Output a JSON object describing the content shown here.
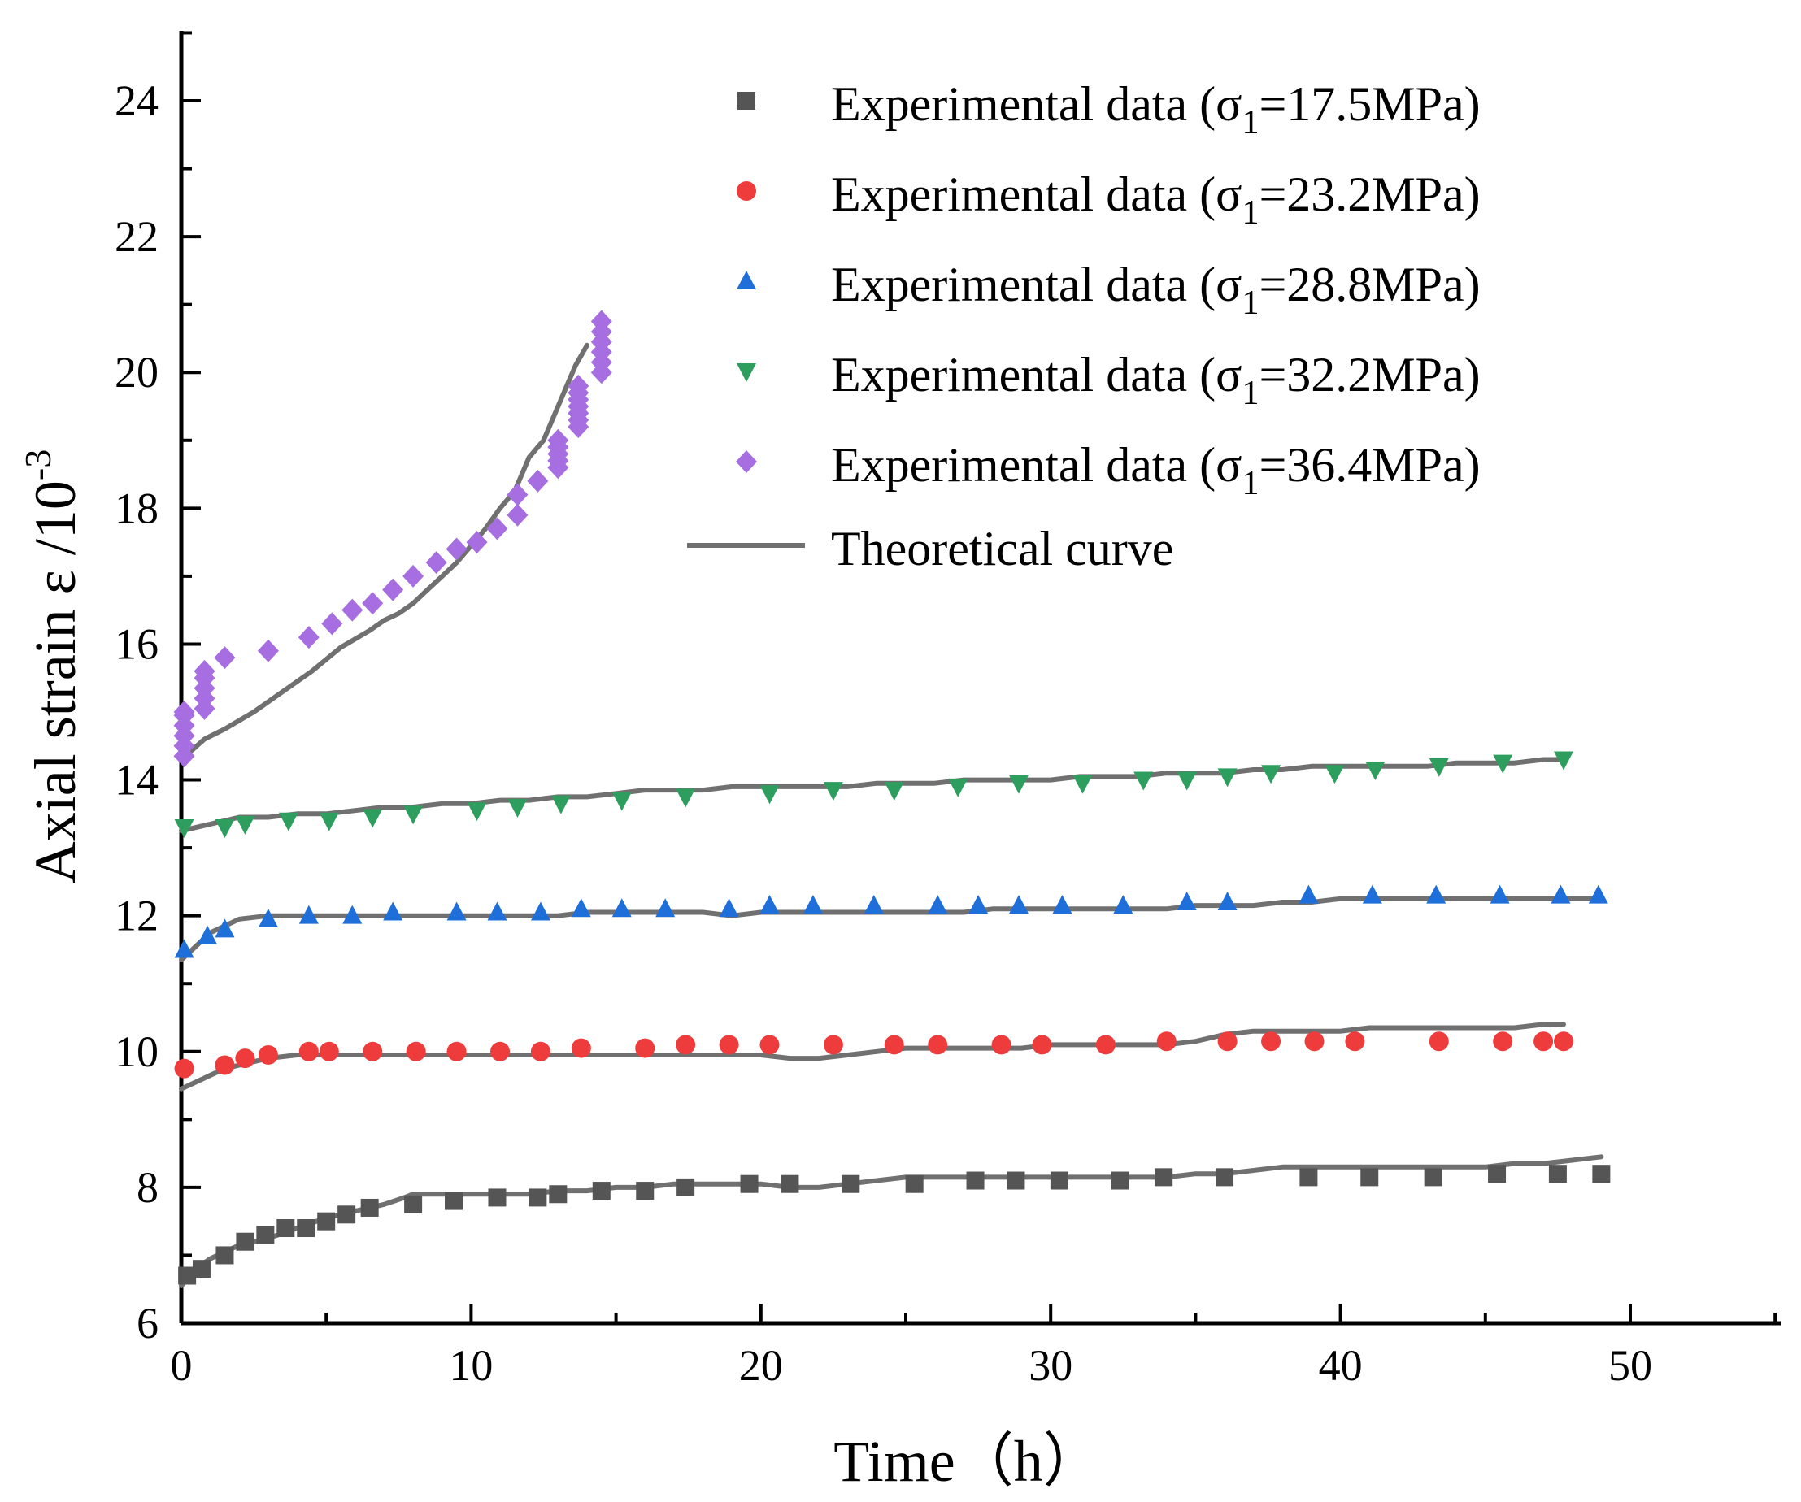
{
  "chart_data": {
    "type": "scatter",
    "xlabel": "Time（h）",
    "ylabel": "Axial strain  ε /10",
    "ylabel_sup": "-3",
    "xlim": [
      0,
      55
    ],
    "ylim": [
      6,
      25
    ],
    "xticks": [
      0,
      10,
      20,
      30,
      40,
      50
    ],
    "yticks": [
      6,
      8,
      10,
      12,
      14,
      16,
      18,
      20,
      22,
      24
    ],
    "grid": false,
    "legend_position": "top-right",
    "series": [
      {
        "name": "Experimental data (σ1=17.5MPa)",
        "legend": {
          "pre": "Experimental data (σ",
          "sub": "1",
          "post": "=17.5MPa)"
        },
        "marker": "square",
        "color": "#555555",
        "x": [
          0.2,
          0.7,
          1.5,
          2.2,
          2.9,
          3.6,
          4.3,
          5.0,
          5.7,
          6.5,
          8.0,
          9.4,
          10.9,
          12.3,
          13.0,
          14.5,
          16.0,
          17.4,
          19.6,
          21.0,
          23.1,
          25.3,
          27.4,
          28.8,
          30.3,
          32.4,
          33.9,
          36.0,
          38.9,
          41.0,
          43.2,
          45.4,
          47.5,
          49.0
        ],
        "y": [
          6.7,
          6.8,
          7.0,
          7.2,
          7.3,
          7.4,
          7.4,
          7.5,
          7.6,
          7.7,
          7.75,
          7.8,
          7.85,
          7.85,
          7.9,
          7.95,
          7.95,
          8.0,
          8.05,
          8.05,
          8.05,
          8.05,
          8.1,
          8.1,
          8.1,
          8.1,
          8.15,
          8.15,
          8.15,
          8.15,
          8.15,
          8.2,
          8.2,
          8.2
        ]
      },
      {
        "name": "Experimental data (σ1=23.2MPa)",
        "legend": {
          "pre": "Experimental data (σ",
          "sub": "1",
          "post": "=23.2MPa)"
        },
        "marker": "circle",
        "color": "#ee3b3b",
        "x": [
          0.1,
          1.5,
          2.2,
          3.0,
          4.4,
          5.1,
          6.6,
          8.1,
          9.5,
          11.0,
          12.4,
          13.8,
          16.0,
          17.4,
          18.9,
          20.3,
          22.5,
          24.6,
          26.1,
          28.3,
          29.7,
          31.9,
          34.0,
          36.1,
          37.6,
          39.1,
          40.5,
          43.4,
          45.6,
          47.0,
          47.7
        ],
        "y": [
          9.75,
          9.8,
          9.9,
          9.95,
          10.0,
          10.0,
          10.0,
          10.0,
          10.0,
          10.0,
          10.0,
          10.05,
          10.05,
          10.1,
          10.1,
          10.1,
          10.1,
          10.1,
          10.1,
          10.1,
          10.1,
          10.1,
          10.15,
          10.15,
          10.15,
          10.15,
          10.15,
          10.15,
          10.15,
          10.15,
          10.15
        ]
      },
      {
        "name": "Experimental data (σ1=28.8MPa)",
        "legend": {
          "pre": "Experimental data (σ",
          "sub": "1",
          "post": "=28.8MPa)"
        },
        "marker": "triangle-up",
        "color": "#1f6fdb",
        "x": [
          0.1,
          0.9,
          1.5,
          3.0,
          4.4,
          5.9,
          7.3,
          9.5,
          10.9,
          12.4,
          13.8,
          15.2,
          16.7,
          18.9,
          20.3,
          21.8,
          23.9,
          26.1,
          27.5,
          28.9,
          30.4,
          32.5,
          34.7,
          36.1,
          38.9,
          41.1,
          43.3,
          45.5,
          47.6,
          48.9
        ],
        "y": [
          11.5,
          11.7,
          11.8,
          11.95,
          12.0,
          12.0,
          12.05,
          12.05,
          12.05,
          12.05,
          12.1,
          12.1,
          12.1,
          12.1,
          12.15,
          12.15,
          12.15,
          12.15,
          12.15,
          12.15,
          12.15,
          12.15,
          12.2,
          12.2,
          12.3,
          12.3,
          12.3,
          12.3,
          12.3,
          12.3
        ]
      },
      {
        "name": "Experimental data (σ1=32.2MPa)",
        "legend": {
          "pre": "Experimental data (σ",
          "sub": "1",
          "post": "=32.2MPa)"
        },
        "marker": "triangle-down",
        "color": "#2e9e5e",
        "x": [
          0.1,
          1.5,
          2.2,
          3.7,
          5.1,
          6.6,
          8.0,
          10.2,
          11.6,
          13.1,
          15.2,
          17.4,
          20.3,
          22.5,
          24.6,
          26.8,
          28.9,
          31.1,
          33.2,
          34.7,
          36.1,
          37.6,
          39.8,
          41.2,
          43.4,
          45.6,
          47.7
        ],
        "y": [
          13.3,
          13.3,
          13.35,
          13.4,
          13.4,
          13.45,
          13.5,
          13.55,
          13.6,
          13.65,
          13.7,
          13.75,
          13.8,
          13.85,
          13.85,
          13.9,
          13.95,
          13.95,
          14.0,
          14.0,
          14.05,
          14.1,
          14.1,
          14.15,
          14.2,
          14.25,
          14.3
        ]
      },
      {
        "name": "Experimental data (σ1=36.4MPa)",
        "legend": {
          "pre": "Experimental data (σ",
          "sub": "1",
          "post": "=36.4MPa)"
        },
        "marker": "diamond",
        "color": "#a66ee0",
        "x": [
          0.1,
          0.1,
          0.1,
          0.1,
          0.1,
          0.1,
          0.8,
          0.8,
          0.8,
          0.8,
          0.8,
          1.5,
          3.0,
          4.4,
          5.2,
          5.9,
          6.6,
          7.3,
          8.0,
          8.8,
          9.5,
          10.2,
          10.9,
          11.6,
          11.6,
          12.3,
          13.0,
          13.0,
          13.0,
          13.0,
          13.0,
          13.7,
          13.7,
          13.7,
          13.7,
          13.7,
          13.7,
          13.7,
          14.5,
          14.5,
          14.5,
          14.5,
          14.5,
          14.5
        ],
        "y": [
          14.35,
          14.5,
          14.65,
          14.8,
          14.95,
          15.0,
          15.05,
          15.2,
          15.35,
          15.5,
          15.6,
          15.8,
          15.9,
          16.1,
          16.3,
          16.5,
          16.6,
          16.8,
          17.0,
          17.2,
          17.4,
          17.5,
          17.7,
          17.9,
          18.2,
          18.4,
          18.6,
          18.7,
          18.8,
          18.9,
          19.0,
          19.2,
          19.3,
          19.4,
          19.5,
          19.6,
          19.7,
          19.8,
          20.0,
          20.15,
          20.3,
          20.45,
          20.6,
          20.75
        ]
      }
    ],
    "theory_legend": "Theoretical  curve",
    "theory_color": "#707070",
    "theory": [
      {
        "x": [
          0,
          0.5,
          1,
          1.5,
          2,
          3,
          4,
          5,
          6,
          7,
          7.7,
          8,
          9,
          10,
          11,
          12,
          13,
          14,
          15,
          16,
          17,
          18,
          19,
          20,
          21,
          22,
          23,
          24,
          25,
          26,
          27,
          28,
          29,
          30,
          31,
          32,
          33,
          34,
          35,
          36,
          37,
          38,
          39,
          40,
          41,
          42,
          43,
          44,
          45,
          46,
          47,
          48,
          49
        ],
        "y": [
          6.55,
          6.8,
          6.95,
          7.05,
          7.15,
          7.25,
          7.4,
          7.55,
          7.65,
          7.75,
          7.85,
          7.9,
          7.9,
          7.9,
          7.9,
          7.9,
          7.95,
          7.95,
          8.0,
          8.0,
          8.05,
          8.05,
          8.05,
          8.05,
          8.0,
          8.0,
          8.05,
          8.1,
          8.15,
          8.15,
          8.15,
          8.15,
          8.15,
          8.15,
          8.15,
          8.15,
          8.15,
          8.15,
          8.2,
          8.2,
          8.25,
          8.3,
          8.3,
          8.3,
          8.3,
          8.3,
          8.3,
          8.3,
          8.3,
          8.35,
          8.35,
          8.4,
          8.45
        ]
      },
      {
        "x": [
          0,
          0.5,
          1,
          1.5,
          2,
          3,
          4,
          5,
          6,
          7,
          8,
          9,
          10,
          11,
          12,
          13,
          14,
          15,
          16,
          17,
          18,
          19,
          20,
          21,
          22,
          23,
          24,
          25,
          26,
          27,
          28,
          29,
          30,
          31,
          32,
          33,
          34,
          35,
          36,
          37,
          38,
          39,
          40,
          41,
          42,
          43,
          44,
          45,
          46,
          47,
          47.7
        ],
        "y": [
          9.45,
          9.55,
          9.65,
          9.75,
          9.8,
          9.9,
          9.95,
          9.95,
          9.95,
          9.95,
          9.95,
          9.95,
          9.95,
          9.95,
          9.95,
          9.95,
          9.95,
          9.95,
          9.95,
          9.95,
          9.95,
          9.95,
          9.95,
          9.9,
          9.9,
          9.95,
          10.0,
          10.05,
          10.05,
          10.05,
          10.05,
          10.05,
          10.1,
          10.1,
          10.1,
          10.1,
          10.1,
          10.15,
          10.25,
          10.3,
          10.3,
          10.3,
          10.3,
          10.35,
          10.35,
          10.35,
          10.35,
          10.35,
          10.35,
          10.4,
          10.4
        ]
      },
      {
        "x": [
          0,
          0.5,
          1,
          1.5,
          2,
          3,
          4,
          5,
          6,
          7,
          8,
          9,
          10,
          11,
          12,
          13,
          14,
          15,
          16,
          17,
          18,
          19,
          20,
          21,
          22,
          23,
          24,
          25,
          26,
          27,
          28,
          29,
          30,
          31,
          32,
          33,
          34,
          35,
          36,
          37,
          38,
          39,
          40,
          41,
          42,
          43,
          44,
          45,
          46,
          47,
          48,
          49
        ],
        "y": [
          11.35,
          11.55,
          11.75,
          11.85,
          11.95,
          12.0,
          12.0,
          12.0,
          12.0,
          12.0,
          12.0,
          12.0,
          12.0,
          12.0,
          12.0,
          12.0,
          12.05,
          12.05,
          12.05,
          12.05,
          12.05,
          12.0,
          12.05,
          12.05,
          12.05,
          12.05,
          12.05,
          12.05,
          12.05,
          12.05,
          12.1,
          12.1,
          12.1,
          12.1,
          12.1,
          12.1,
          12.1,
          12.15,
          12.15,
          12.15,
          12.2,
          12.2,
          12.25,
          12.25,
          12.25,
          12.25,
          12.25,
          12.25,
          12.25,
          12.25,
          12.25,
          12.25
        ]
      },
      {
        "x": [
          0,
          1,
          2,
          3,
          4,
          5,
          6,
          7,
          8,
          9,
          10,
          11,
          12,
          13,
          14,
          15,
          16,
          17,
          18,
          19,
          20,
          21,
          22,
          23,
          24,
          25,
          26,
          27,
          28,
          29,
          30,
          31,
          32,
          33,
          34,
          35,
          36,
          37,
          38,
          39,
          40,
          41,
          42,
          43,
          44,
          45,
          46,
          47,
          47.7
        ],
        "y": [
          13.25,
          13.35,
          13.45,
          13.45,
          13.5,
          13.5,
          13.55,
          13.6,
          13.6,
          13.65,
          13.65,
          13.7,
          13.7,
          13.75,
          13.75,
          13.8,
          13.85,
          13.85,
          13.85,
          13.9,
          13.9,
          13.9,
          13.9,
          13.9,
          13.95,
          13.95,
          13.95,
          14.0,
          14.0,
          14.0,
          14.0,
          14.05,
          14.05,
          14.05,
          14.1,
          14.1,
          14.1,
          14.15,
          14.15,
          14.2,
          14.2,
          14.2,
          14.2,
          14.2,
          14.25,
          14.25,
          14.25,
          14.3,
          14.3
        ]
      },
      {
        "x": [
          0,
          0.4,
          0.8,
          1.5,
          2.5,
          3.5,
          4.5,
          5.5,
          6.5,
          7,
          7.5,
          8,
          8.5,
          9,
          9.5,
          10,
          10.5,
          11,
          11.5,
          12,
          12.5,
          13,
          13.3,
          13.6,
          14
        ],
        "y": [
          14.3,
          14.45,
          14.6,
          14.75,
          15.0,
          15.3,
          15.6,
          15.95,
          16.2,
          16.35,
          16.45,
          16.6,
          16.8,
          17.0,
          17.2,
          17.45,
          17.7,
          18.0,
          18.25,
          18.75,
          19.0,
          19.5,
          19.8,
          20.1,
          20.4
        ]
      }
    ]
  }
}
